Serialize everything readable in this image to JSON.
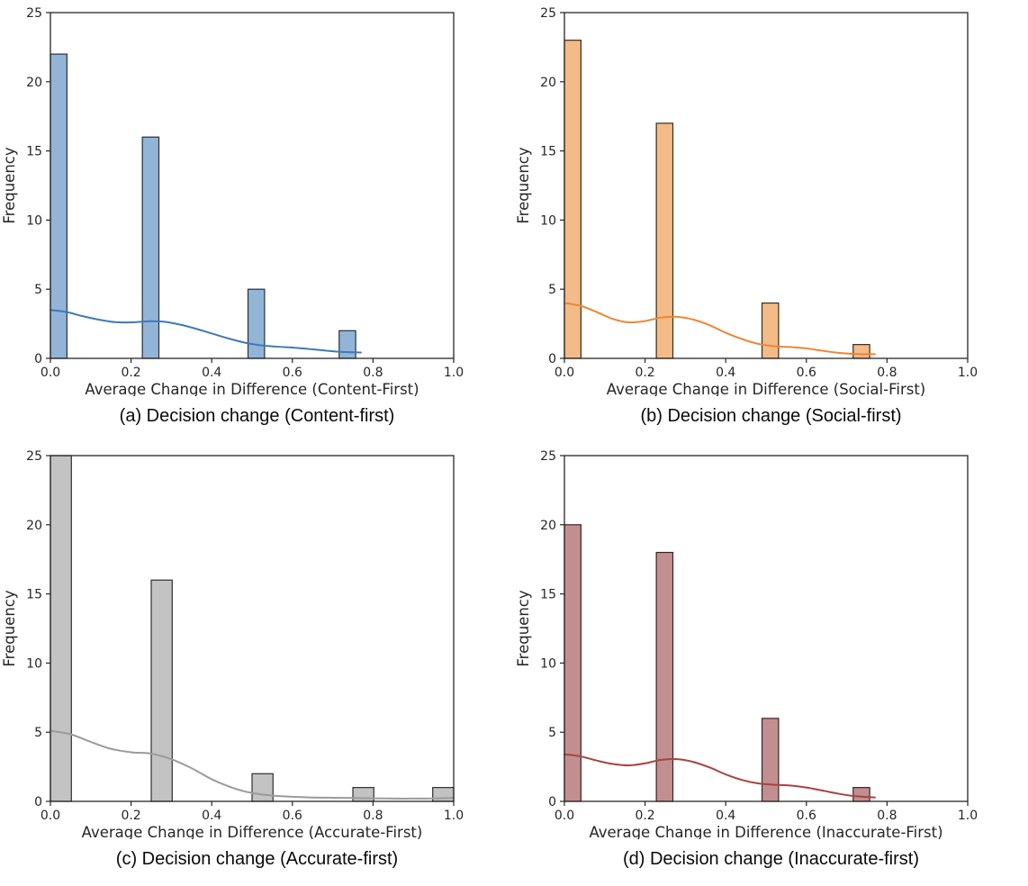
{
  "figure": {
    "background": "#ffffff",
    "spine_color": "#262626",
    "text_color": "#262626"
  },
  "chart_data": [
    {
      "id": "a",
      "type": "bar",
      "subtype": "histogram-with-kde",
      "caption": "(a) Decision change (Content-first)",
      "xlabel": "Average Change in Difference (Content-First)",
      "ylabel": "Frequency",
      "xlim": [
        0.0,
        1.0
      ],
      "ylim": [
        0,
        25
      ],
      "xticks": [
        "0.0",
        "0.2",
        "0.4",
        "0.6",
        "0.8",
        "1.0"
      ],
      "xtick_values": [
        0.0,
        0.2,
        0.4,
        0.6,
        0.8,
        1.0
      ],
      "yticks": [
        "0",
        "5",
        "10",
        "15",
        "20",
        "25"
      ],
      "ytick_values": [
        0,
        5,
        10,
        15,
        20,
        25
      ],
      "bar_width": 0.041,
      "bars": [
        {
          "x": 0.0,
          "height": 22
        },
        {
          "x": 0.228,
          "height": 16
        },
        {
          "x": 0.49,
          "height": 5
        },
        {
          "x": 0.716,
          "height": 2
        }
      ],
      "kde": {
        "x": [
          0,
          0.04,
          0.08,
          0.12,
          0.16,
          0.2,
          0.24,
          0.28,
          0.32,
          0.36,
          0.4,
          0.44,
          0.48,
          0.52,
          0.56,
          0.6,
          0.64,
          0.68,
          0.72,
          0.77
        ],
        "y": [
          3.5,
          3.35,
          3.05,
          2.8,
          2.62,
          2.6,
          2.68,
          2.65,
          2.45,
          2.15,
          1.8,
          1.45,
          1.15,
          0.95,
          0.85,
          0.78,
          0.68,
          0.57,
          0.47,
          0.42
        ]
      },
      "colors": {
        "bar_fill": "#92b5d7",
        "bar_edge": "#27303b",
        "line": "#3d7ab8"
      }
    },
    {
      "id": "b",
      "type": "bar",
      "subtype": "histogram-with-kde",
      "caption": "(b) Decision change (Social-first)",
      "xlabel": "Average Change in Difference (Social-First)",
      "ylabel": "Frequency",
      "xlim": [
        0.0,
        1.0
      ],
      "ylim": [
        0,
        25
      ],
      "xticks": [
        "0.0",
        "0.2",
        "0.4",
        "0.6",
        "0.8",
        "1.0"
      ],
      "xtick_values": [
        0.0,
        0.2,
        0.4,
        0.6,
        0.8,
        1.0
      ],
      "yticks": [
        "0",
        "5",
        "10",
        "15",
        "20",
        "25"
      ],
      "ytick_values": [
        0,
        5,
        10,
        15,
        20,
        25
      ],
      "bar_width": 0.041,
      "bars": [
        {
          "x": 0.0,
          "height": 23
        },
        {
          "x": 0.228,
          "height": 17
        },
        {
          "x": 0.49,
          "height": 4
        },
        {
          "x": 0.716,
          "height": 1
        }
      ],
      "kde": {
        "x": [
          0,
          0.04,
          0.08,
          0.12,
          0.16,
          0.2,
          0.24,
          0.28,
          0.32,
          0.36,
          0.4,
          0.44,
          0.48,
          0.52,
          0.56,
          0.6,
          0.64,
          0.68,
          0.72,
          0.77
        ],
        "y": [
          4.0,
          3.8,
          3.35,
          2.85,
          2.6,
          2.7,
          2.95,
          3.0,
          2.8,
          2.4,
          1.85,
          1.4,
          1.05,
          0.88,
          0.82,
          0.72,
          0.55,
          0.4,
          0.32,
          0.3
        ]
      },
      "colors": {
        "bar_fill": "#f3bb88",
        "bar_edge": "#3a2a18",
        "line": "#ee8635"
      }
    },
    {
      "id": "c",
      "type": "bar",
      "subtype": "histogram-with-kde",
      "caption": "(c) Decision change (Accurate-first)",
      "xlabel": "Average Change in Difference (Accurate-First)",
      "ylabel": "Frequency",
      "xlim": [
        0.0,
        1.0
      ],
      "ylim": [
        0,
        25
      ],
      "xticks": [
        "0.0",
        "0.2",
        "0.4",
        "0.6",
        "0.8",
        "1.0"
      ],
      "xtick_values": [
        0.0,
        0.2,
        0.4,
        0.6,
        0.8,
        1.0
      ],
      "yticks": [
        "0",
        "5",
        "10",
        "15",
        "20",
        "25"
      ],
      "ytick_values": [
        0,
        5,
        10,
        15,
        20,
        25
      ],
      "bar_width": 0.052,
      "bars": [
        {
          "x": 0.0,
          "height": 25
        },
        {
          "x": 0.25,
          "height": 16
        },
        {
          "x": 0.5,
          "height": 2
        },
        {
          "x": 0.75,
          "height": 1
        },
        {
          "x": 0.948,
          "height": 1
        }
      ],
      "kde": {
        "x": [
          0,
          0.05,
          0.1,
          0.15,
          0.2,
          0.25,
          0.3,
          0.35,
          0.4,
          0.45,
          0.5,
          0.55,
          0.6,
          0.65,
          0.7,
          0.75,
          0.8,
          0.85,
          0.9,
          0.95,
          1.0
        ],
        "y": [
          5.1,
          4.85,
          4.3,
          3.8,
          3.55,
          3.45,
          3.05,
          2.4,
          1.6,
          1.0,
          0.6,
          0.42,
          0.33,
          0.28,
          0.26,
          0.24,
          0.22,
          0.2,
          0.2,
          0.21,
          0.25
        ]
      },
      "colors": {
        "bar_fill": "#c3c3c3",
        "bar_edge": "#2f2f2f",
        "line": "#9b9b9b"
      }
    },
    {
      "id": "d",
      "type": "bar",
      "subtype": "histogram-with-kde",
      "caption": "(d) Decision change (Inaccurate-first)",
      "xlabel": "Average Change in Difference (Inaccurate-First)",
      "ylabel": "Frequency",
      "xlim": [
        0.0,
        1.0
      ],
      "ylim": [
        0,
        25
      ],
      "xticks": [
        "0.0",
        "0.2",
        "0.4",
        "0.6",
        "0.8",
        "1.0"
      ],
      "xtick_values": [
        0.0,
        0.2,
        0.4,
        0.6,
        0.8,
        1.0
      ],
      "yticks": [
        "0",
        "5",
        "10",
        "15",
        "20",
        "25"
      ],
      "ytick_values": [
        0,
        5,
        10,
        15,
        20,
        25
      ],
      "bar_width": 0.041,
      "bars": [
        {
          "x": 0.0,
          "height": 20
        },
        {
          "x": 0.228,
          "height": 18
        },
        {
          "x": 0.49,
          "height": 6
        },
        {
          "x": 0.716,
          "height": 1
        }
      ],
      "kde": {
        "x": [
          0,
          0.04,
          0.08,
          0.12,
          0.16,
          0.2,
          0.24,
          0.28,
          0.32,
          0.36,
          0.4,
          0.44,
          0.48,
          0.52,
          0.56,
          0.6,
          0.64,
          0.68,
          0.72,
          0.77
        ],
        "y": [
          3.4,
          3.25,
          2.95,
          2.7,
          2.6,
          2.75,
          3.0,
          3.05,
          2.85,
          2.45,
          1.95,
          1.55,
          1.3,
          1.2,
          1.15,
          1.0,
          0.78,
          0.55,
          0.38,
          0.28
        ]
      },
      "colors": {
        "bar_fill": "#c28f90",
        "bar_edge": "#3c2224",
        "line": "#a84341"
      }
    }
  ]
}
